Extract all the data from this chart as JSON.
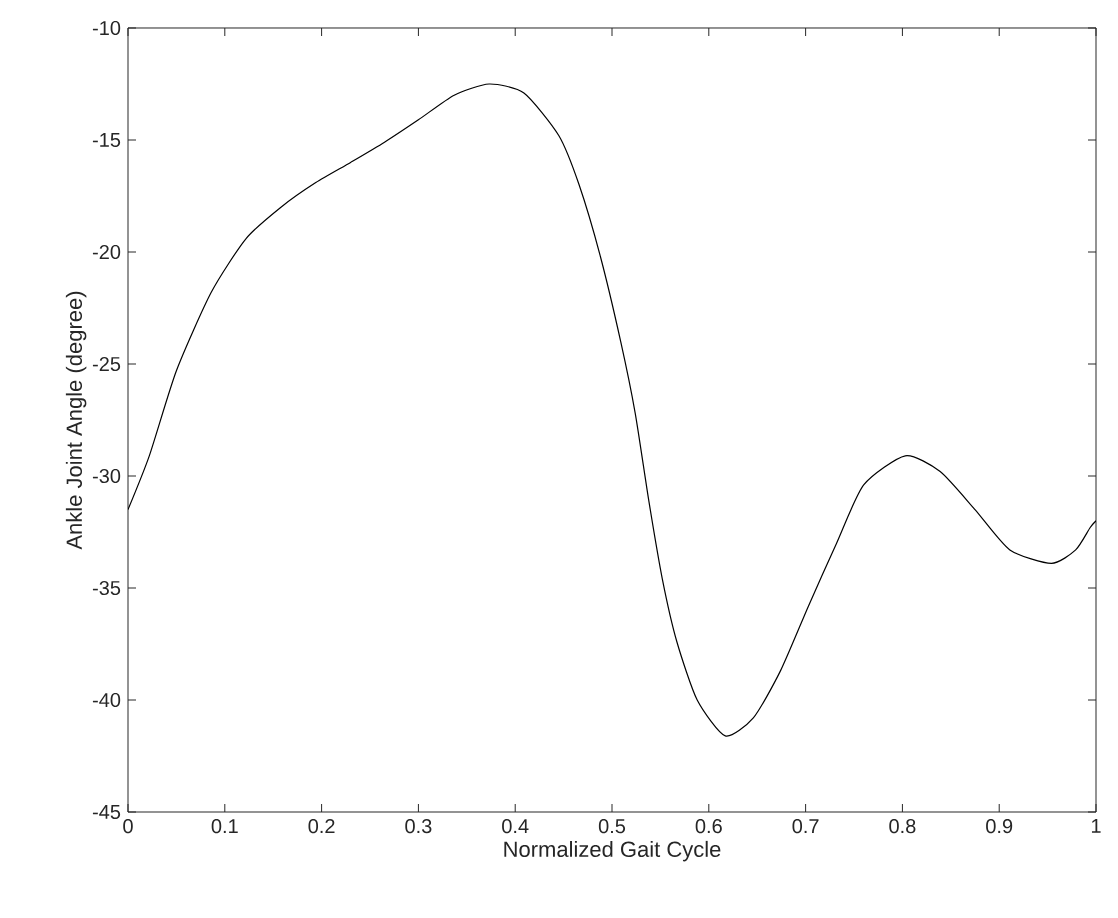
{
  "chart_data": {
    "type": "line",
    "xlabel": "Normalized Gait Cycle",
    "ylabel": "Ankle Joint Angle (degree)",
    "xlim": [
      0,
      1
    ],
    "ylim": [
      -45,
      -10
    ],
    "xticks": [
      0,
      0.1,
      0.2,
      0.3,
      0.4,
      0.5,
      0.6,
      0.7,
      0.8,
      0.9,
      1
    ],
    "yticks": [
      -45,
      -40,
      -35,
      -30,
      -25,
      -20,
      -15,
      -10
    ],
    "grid": false,
    "marker": "none",
    "line_style": "solid",
    "series": [
      {
        "color": "#000000",
        "x": [
          0,
          0.022,
          0.05,
          0.086,
          0.122,
          0.158,
          0.194,
          0.23,
          0.265,
          0.3,
          0.337,
          0.373,
          0.409,
          0.445,
          0.466,
          0.488,
          0.509,
          0.524,
          0.538,
          0.552,
          0.567,
          0.588,
          0.617,
          0.646,
          0.674,
          0.703,
          0.732,
          0.76,
          0.803,
          0.839,
          0.875,
          0.911,
          0.954,
          0.979,
          0.994,
          1
        ],
        "values": [
          -31.5,
          -29.1,
          -25.3,
          -21.8,
          -19.4,
          -18.0,
          -16.9,
          -16.0,
          -15.1,
          -14.1,
          -13.0,
          -12.5,
          -12.9,
          -14.8,
          -17.0,
          -20.2,
          -24.0,
          -27.2,
          -31.1,
          -34.6,
          -37.4,
          -40.0,
          -41.6,
          -40.8,
          -38.7,
          -35.8,
          -33.0,
          -30.4,
          -29.1,
          -29.8,
          -31.5,
          -33.3,
          -33.9,
          -33.3,
          -32.3,
          -32.0
        ]
      }
    ]
  }
}
